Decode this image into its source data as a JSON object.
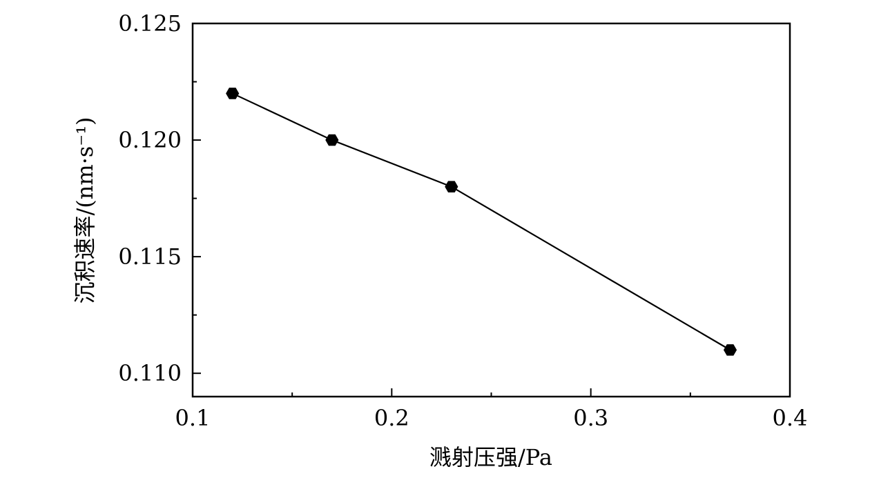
{
  "chart_data": {
    "type": "line",
    "xlabel": "溅射压强/Pa",
    "ylabel": "沉积速率/(nm·s⁻¹)",
    "xlim": [
      0.1,
      0.4
    ],
    "ylim": [
      0.109,
      0.125
    ],
    "x_ticks": [
      "0.1",
      "0.2",
      "0.3",
      "0.4"
    ],
    "y_ticks": [
      "0.110",
      "0.115",
      "0.120",
      "0.125"
    ],
    "series": [
      {
        "x": [
          0.12,
          0.17,
          0.23,
          0.37
        ],
        "y": [
          0.122,
          0.12,
          0.118,
          0.111
        ],
        "marker": "hexagon",
        "color": "#000000"
      }
    ]
  }
}
